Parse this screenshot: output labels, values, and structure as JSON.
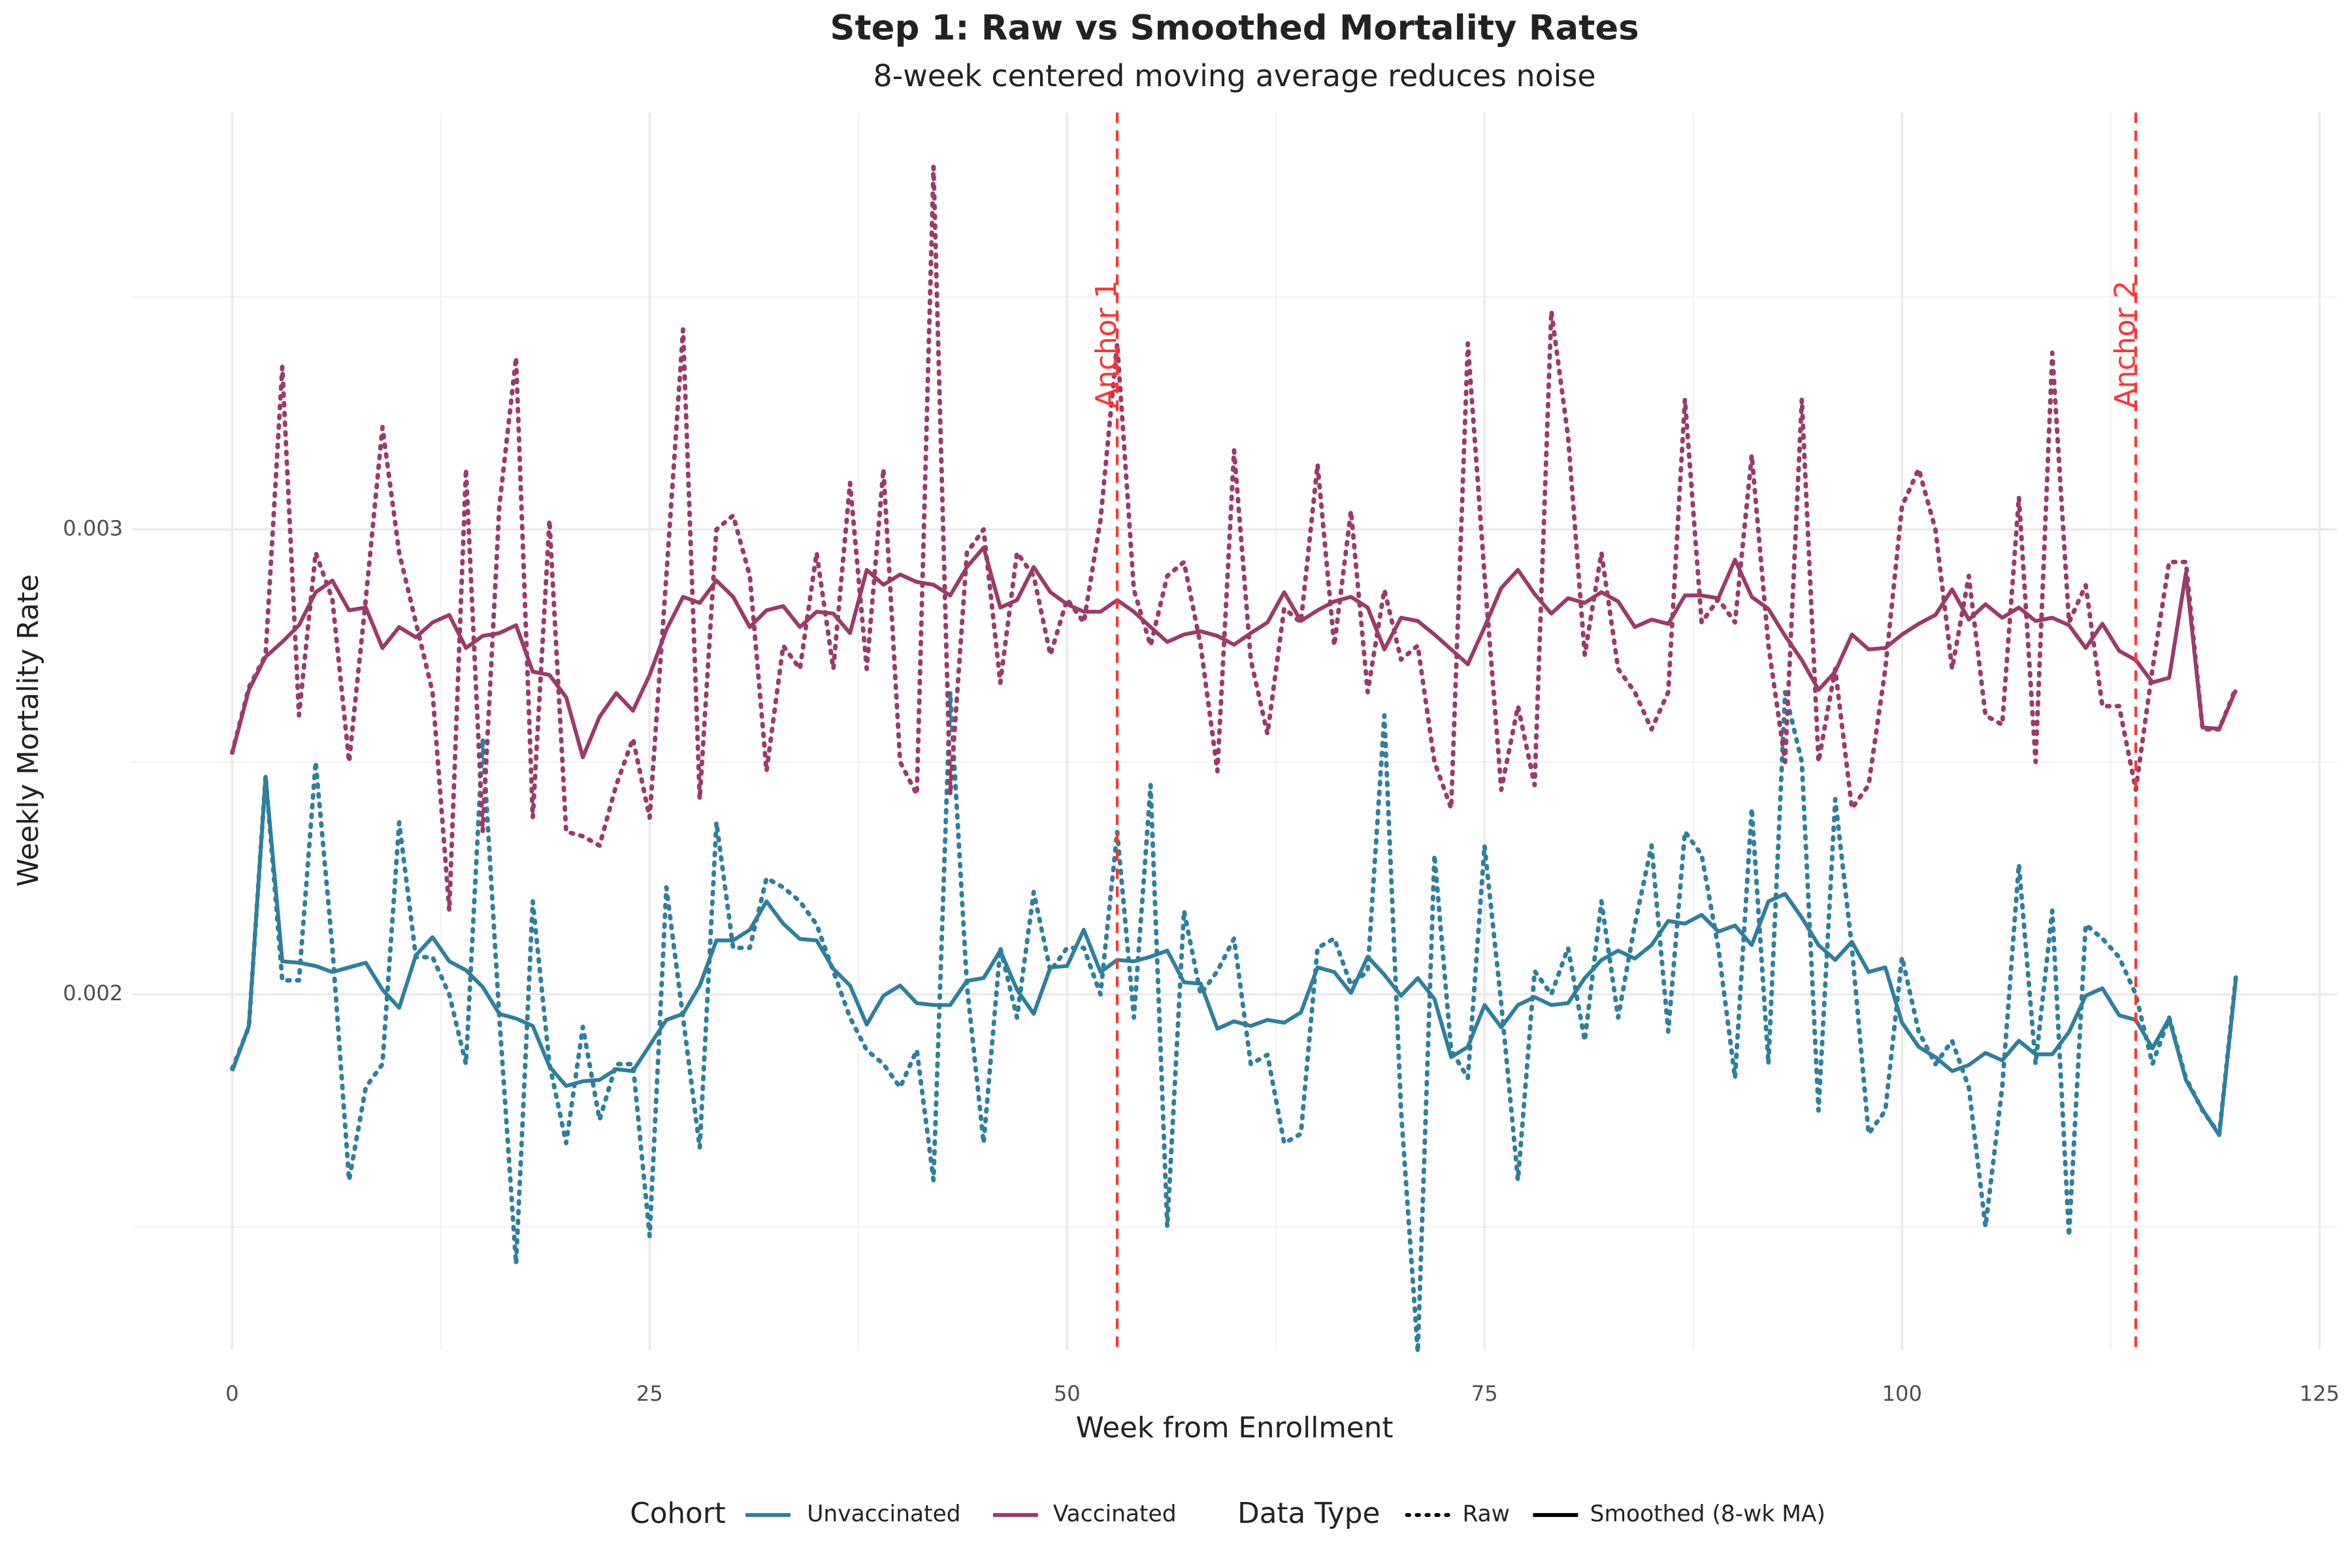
{
  "chart_data": {
    "type": "line",
    "title": "Step 1: Raw vs Smoothed Mortality Rates",
    "subtitle": "8-week centered moving average reduces noise",
    "x_label": "Week from Enrollment",
    "y_label": "Weekly Mortality Rate",
    "xlim": [
      -6,
      126.05
    ],
    "ylim": [
      0.001235,
      0.0038968
    ],
    "xticks": [
      0,
      25,
      50,
      75,
      100,
      125
    ],
    "yticks": [
      0.002,
      0.003
    ],
    "xminor": [
      12.5,
      37.5,
      62.5,
      87.5,
      112.5
    ],
    "yminor": [
      0.0015,
      0.0025,
      0.0035
    ],
    "grid": true,
    "legend_position": "bottom",
    "legend": {
      "cohort_title": "Cohort",
      "data_type_title": "Data Type"
    },
    "cohorts": [
      {
        "name": "Unvaccinated",
        "color": "#2e7f9e"
      },
      {
        "name": "Vaccinated",
        "color": "#9b3a6b"
      }
    ],
    "data_types": [
      {
        "name": "Raw",
        "dash": "dotted"
      },
      {
        "name": "Smoothed (8-wk MA)",
        "dash": "solid"
      }
    ],
    "annotations": [
      {
        "x": 53,
        "label": "Anchor 1",
        "color": "#ff3333"
      },
      {
        "x": 114,
        "label": "Anchor 2",
        "color": "#ff3333"
      }
    ],
    "x": [
      0,
      1,
      2,
      3,
      4,
      5,
      6,
      7,
      8,
      9,
      10,
      11,
      12,
      13,
      14,
      15,
      16,
      17,
      18,
      19,
      20,
      21,
      22,
      23,
      24,
      25,
      26,
      27,
      28,
      29,
      30,
      31,
      32,
      33,
      34,
      35,
      36,
      37,
      38,
      39,
      40,
      41,
      42,
      43,
      44,
      45,
      46,
      47,
      48,
      49,
      50,
      51,
      52,
      53,
      54,
      55,
      56,
      57,
      58,
      59,
      60,
      61,
      62,
      63,
      64,
      65,
      66,
      67,
      68,
      69,
      70,
      71,
      72,
      73,
      74,
      75,
      76,
      77,
      78,
      79,
      80,
      81,
      82,
      83,
      84,
      85,
      86,
      87,
      88,
      89,
      90,
      91,
      92,
      93,
      94,
      95,
      96,
      97,
      98,
      99,
      100,
      101,
      102,
      103,
      104,
      105,
      106,
      107,
      108,
      109,
      110,
      111,
      112,
      113,
      114,
      115,
      116,
      117,
      118,
      119,
      120
    ],
    "series": [
      {
        "cohort": 0,
        "data_type": 0,
        "values": [
          0.00184,
          0.00193,
          0.00247,
          0.00203,
          0.00203,
          0.0025,
          0.0021,
          0.0016,
          0.0018,
          0.00185,
          0.00237,
          0.00208,
          0.00208,
          0.002,
          0.00185,
          0.00255,
          0.00195,
          0.00142,
          0.0022,
          0.00185,
          0.00168,
          0.00193,
          0.00173,
          0.00185,
          0.00185,
          0.00148,
          0.00223,
          0.00195,
          0.00167,
          0.00237,
          0.0021,
          0.0021,
          0.00225,
          0.00223,
          0.0022,
          0.00215,
          0.00205,
          0.00195,
          0.00188,
          0.00185,
          0.0018,
          0.00188,
          0.0016,
          0.00265,
          0.00202,
          0.00168,
          0.0021,
          0.00195,
          0.00222,
          0.00205,
          0.0021,
          0.0021,
          0.002,
          0.00235,
          0.00195,
          0.00245,
          0.0015,
          0.00218,
          0.002,
          0.00205,
          0.00212,
          0.00185,
          0.00187,
          0.00168,
          0.0017,
          0.0021,
          0.00212,
          0.00202,
          0.00205,
          0.0026,
          0.00175,
          0.00123,
          0.0023,
          0.00188,
          0.00182,
          0.00232,
          0.00198,
          0.0016,
          0.00205,
          0.002,
          0.0021,
          0.0019,
          0.0022,
          0.00195,
          0.00215,
          0.00232,
          0.00192,
          0.00235,
          0.0023,
          0.0021,
          0.00182,
          0.0024,
          0.00185,
          0.00265,
          0.0025,
          0.00175,
          0.00242,
          0.0021,
          0.0017,
          0.00175,
          0.00208,
          0.00192,
          0.00185,
          0.0019,
          0.0018,
          0.0015,
          0.0018,
          0.00228,
          0.00185,
          0.00218,
          0.00148,
          0.00215,
          0.00212,
          0.00208,
          0.002,
          0.00185,
          0.00195,
          0.00182,
          0.00175,
          0.0017,
          0.00204
        ]
      },
      {
        "cohort": 0,
        "data_type": 1,
        "values": [
          0.001835,
          0.001932,
          0.002468,
          0.002071,
          0.002068,
          0.002061,
          0.002048,
          0.002058,
          0.002068,
          0.00201,
          0.001971,
          0.002084,
          0.002123,
          0.002071,
          0.002052,
          0.002016,
          0.001958,
          0.001948,
          0.001932,
          0.001845,
          0.001803,
          0.001813,
          0.001816,
          0.001839,
          0.001835,
          0.00189,
          0.001945,
          0.001958,
          0.002019,
          0.002116,
          0.002116,
          0.002139,
          0.0022,
          0.002152,
          0.002119,
          0.002116,
          0.002055,
          0.002019,
          0.001935,
          0.001997,
          0.002019,
          0.001981,
          0.001977,
          0.001977,
          0.002029,
          0.002035,
          0.002094,
          0.00201,
          0.001958,
          0.002058,
          0.002061,
          0.002139,
          0.002048,
          0.002074,
          0.002071,
          0.002081,
          0.002094,
          0.002026,
          0.002023,
          0.001926,
          0.001942,
          0.001932,
          0.001945,
          0.001939,
          0.001961,
          0.002058,
          0.002048,
          0.002003,
          0.002081,
          0.002042,
          0.001997,
          0.002035,
          0.00199,
          0.001865,
          0.001887,
          0.001977,
          0.001929,
          0.001977,
          0.001994,
          0.001977,
          0.001981,
          0.002035,
          0.002074,
          0.002094,
          0.002077,
          0.002106,
          0.002158,
          0.002152,
          0.002171,
          0.002135,
          0.002148,
          0.002106,
          0.0022,
          0.002216,
          0.002165,
          0.002106,
          0.002074,
          0.002113,
          0.002048,
          0.002058,
          0.001939,
          0.001887,
          0.001865,
          0.001835,
          0.001848,
          0.001874,
          0.001858,
          0.0019,
          0.001871,
          0.001871,
          0.001919,
          0.001997,
          0.002013,
          0.001955,
          0.001945,
          0.001884,
          0.001948,
          0.001816,
          0.001752,
          0.001697,
          0.002035
        ]
      },
      {
        "cohort": 1,
        "data_type": 0,
        "values": [
          0.00252,
          0.00266,
          0.00273,
          0.00335,
          0.0026,
          0.00295,
          0.00285,
          0.0025,
          0.00285,
          0.00322,
          0.00295,
          0.0028,
          0.00265,
          0.00218,
          0.00313,
          0.00235,
          0.00305,
          0.00337,
          0.00238,
          0.00302,
          0.00235,
          0.00234,
          0.00232,
          0.00245,
          0.00255,
          0.00238,
          0.0029,
          0.00343,
          0.00242,
          0.003,
          0.00303,
          0.0029,
          0.00248,
          0.00275,
          0.0027,
          0.00295,
          0.0027,
          0.0031,
          0.0027,
          0.00313,
          0.0025,
          0.00243,
          0.00378,
          0.00243,
          0.00295,
          0.003,
          0.00267,
          0.00295,
          0.0029,
          0.00273,
          0.00285,
          0.0028,
          0.00302,
          0.0034,
          0.00287,
          0.00275,
          0.0029,
          0.00293,
          0.00275,
          0.00248,
          0.00317,
          0.00272,
          0.00256,
          0.00283,
          0.0028,
          0.00314,
          0.00275,
          0.00304,
          0.00265,
          0.00287,
          0.00272,
          0.00275,
          0.0025,
          0.0024,
          0.0034,
          0.0029,
          0.00244,
          0.00262,
          0.00245,
          0.00347,
          0.0032,
          0.00273,
          0.00295,
          0.0027,
          0.00265,
          0.00257,
          0.00265,
          0.00328,
          0.0028,
          0.00285,
          0.0028,
          0.00316,
          0.00275,
          0.0025,
          0.00328,
          0.0025,
          0.0027,
          0.0024,
          0.00245,
          0.0027,
          0.00305,
          0.00313,
          0.003,
          0.0027,
          0.0029,
          0.0026,
          0.00258,
          0.00307,
          0.0025,
          0.00338,
          0.0028,
          0.00288,
          0.00262,
          0.00262,
          0.00244,
          0.0027,
          0.00293,
          0.00293,
          0.00257,
          0.00257,
          0.00266
        ]
      },
      {
        "cohort": 1,
        "data_type": 1,
        "values": [
          0.002519,
          0.002655,
          0.002726,
          0.002758,
          0.002794,
          0.002865,
          0.00289,
          0.002826,
          0.002832,
          0.002745,
          0.00279,
          0.002768,
          0.0028,
          0.002816,
          0.002745,
          0.002771,
          0.002777,
          0.002794,
          0.002694,
          0.002687,
          0.002639,
          0.00251,
          0.002597,
          0.002648,
          0.00261,
          0.002687,
          0.002784,
          0.002855,
          0.002842,
          0.00289,
          0.002855,
          0.00279,
          0.002826,
          0.002835,
          0.00279,
          0.002823,
          0.002819,
          0.002777,
          0.002913,
          0.002881,
          0.002903,
          0.002887,
          0.002881,
          0.002858,
          0.002919,
          0.002961,
          0.002832,
          0.002848,
          0.002919,
          0.002865,
          0.002839,
          0.002823,
          0.002823,
          0.002848,
          0.002823,
          0.00279,
          0.002758,
          0.002774,
          0.002781,
          0.002771,
          0.002752,
          0.002777,
          0.0028,
          0.002865,
          0.002803,
          0.002826,
          0.002845,
          0.002855,
          0.002832,
          0.002742,
          0.00281,
          0.002803,
          0.002774,
          0.002742,
          0.00271,
          0.00279,
          0.002874,
          0.002913,
          0.002861,
          0.002819,
          0.002852,
          0.002842,
          0.002865,
          0.002845,
          0.00279,
          0.002806,
          0.002797,
          0.002858,
          0.002858,
          0.002852,
          0.002935,
          0.002855,
          0.002829,
          0.002771,
          0.002719,
          0.002655,
          0.002694,
          0.002774,
          0.002742,
          0.002745,
          0.002774,
          0.002797,
          0.002816,
          0.002871,
          0.002806,
          0.002839,
          0.00281,
          0.002832,
          0.002803,
          0.00281,
          0.002794,
          0.002745,
          0.002797,
          0.002739,
          0.002719,
          0.002671,
          0.002681,
          0.002906,
          0.002574,
          0.002571,
          0.002655
        ]
      }
    ]
  }
}
